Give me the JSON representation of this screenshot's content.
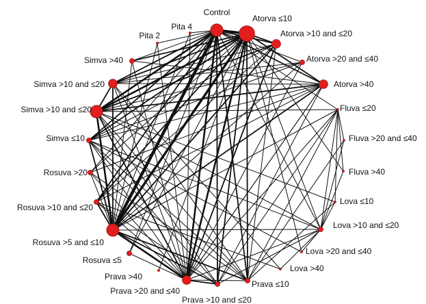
{
  "colors": {
    "node": "#e21e1e",
    "edge": "#111111",
    "label": "#111111"
  },
  "network": {
    "nodes": [
      {
        "id": "control",
        "label": "Control",
        "size": 3
      },
      {
        "id": "atorva_le10",
        "label": "Atorva ≤10",
        "size": 4
      },
      {
        "id": "atorva_10_20",
        "label": "Atorva >10 and ≤20",
        "size": 2
      },
      {
        "id": "atorva_20_40",
        "label": "Atorva >20 and ≤40",
        "size": 1
      },
      {
        "id": "atorva_gt40",
        "label": "Atorva >40",
        "size": 2
      },
      {
        "id": "fluva_le20",
        "label": "Fluva ≤20",
        "size": 0
      },
      {
        "id": "fluva_20_40",
        "label": "Fluva >20 and ≤40",
        "size": 0
      },
      {
        "id": "fluva_gt40",
        "label": "Fluva >40",
        "size": 0
      },
      {
        "id": "lova_le10",
        "label": "Lova ≤10",
        "size": 0
      },
      {
        "id": "lova_10_20",
        "label": "Lova >10 and ≤20",
        "size": 1
      },
      {
        "id": "lova_20_40",
        "label": "Lova >20 and ≤40",
        "size": 0
      },
      {
        "id": "lova_gt40",
        "label": "Lova >40",
        "size": 0
      },
      {
        "id": "prava_le10",
        "label": "Prava ≤10",
        "size": 1
      },
      {
        "id": "prava_10_20",
        "label": "Prava >10 and ≤20",
        "size": 1
      },
      {
        "id": "prava_20_40",
        "label": "Prava >20 and ≤40",
        "size": 2
      },
      {
        "id": "prava_gt40",
        "label": "Prava >40",
        "size": 0
      },
      {
        "id": "rosuva_le5",
        "label": "Rosuva ≤5",
        "size": 1
      },
      {
        "id": "rosuva_5_10",
        "label": "Rosuva >5 and ≤10",
        "size": 3
      },
      {
        "id": "rosuva_10_20",
        "label": "Rosuva >10 and ≤20",
        "size": 1
      },
      {
        "id": "rosuva_gt20",
        "label": "Rosuva >20",
        "size": 1
      },
      {
        "id": "simva_le10",
        "label": "Simva ≤10",
        "size": 1
      },
      {
        "id": "simva_10_20_a",
        "label": "Simva >10 and ≤20",
        "size": 3
      },
      {
        "id": "simva_10_20_b",
        "label": "Simva >10 and ≤20",
        "size": 2
      },
      {
        "id": "simva_gt40",
        "label": "Simva >40",
        "size": 1
      },
      {
        "id": "pita2",
        "label": "Pita 2",
        "size": 0
      },
      {
        "id": "pita4",
        "label": "Pita 4",
        "size": 0
      }
    ],
    "edges": [
      {
        "a": "control",
        "b": "atorva_le10",
        "w": 4
      },
      {
        "a": "control",
        "b": "atorva_10_20",
        "w": 2
      },
      {
        "a": "control",
        "b": "atorva_20_40",
        "w": 1
      },
      {
        "a": "control",
        "b": "atorva_gt40",
        "w": 2
      },
      {
        "a": "control",
        "b": "rosuva_5_10",
        "w": 5
      },
      {
        "a": "control",
        "b": "prava_20_40",
        "w": 3
      },
      {
        "a": "control",
        "b": "prava_10_20",
        "w": 2
      },
      {
        "a": "control",
        "b": "prava_le10",
        "w": 2
      },
      {
        "a": "control",
        "b": "simva_10_20_a",
        "w": 3
      },
      {
        "a": "control",
        "b": "simva_10_20_b",
        "w": 2
      },
      {
        "a": "control",
        "b": "simva_gt40",
        "w": 1
      },
      {
        "a": "control",
        "b": "simva_le10",
        "w": 2
      },
      {
        "a": "control",
        "b": "rosuva_10_20",
        "w": 2
      },
      {
        "a": "control",
        "b": "rosuva_gt20",
        "w": 1
      },
      {
        "a": "control",
        "b": "rosuva_le5",
        "w": 1
      },
      {
        "a": "control",
        "b": "lova_10_20",
        "w": 1
      },
      {
        "a": "control",
        "b": "fluva_le20",
        "w": 1
      },
      {
        "a": "control",
        "b": "pita2",
        "w": 1
      },
      {
        "a": "control",
        "b": "pita4",
        "w": 1
      },
      {
        "a": "atorva_le10",
        "b": "rosuva_5_10",
        "w": 4
      },
      {
        "a": "atorva_le10",
        "b": "simva_10_20_a",
        "w": 3
      },
      {
        "a": "atorva_le10",
        "b": "simva_10_20_b",
        "w": 2
      },
      {
        "a": "atorva_le10",
        "b": "simva_gt40",
        "w": 2
      },
      {
        "a": "atorva_le10",
        "b": "simva_le10",
        "w": 2
      },
      {
        "a": "atorva_le10",
        "b": "rosuva_10_20",
        "w": 2
      },
      {
        "a": "atorva_le10",
        "b": "rosuva_gt20",
        "w": 1
      },
      {
        "a": "atorva_le10",
        "b": "prava_20_40",
        "w": 3
      },
      {
        "a": "atorva_le10",
        "b": "prava_10_20",
        "w": 2
      },
      {
        "a": "atorva_le10",
        "b": "prava_le10",
        "w": 2
      },
      {
        "a": "atorva_le10",
        "b": "prava_gt40",
        "w": 1
      },
      {
        "a": "atorva_le10",
        "b": "rosuva_le5",
        "w": 1
      },
      {
        "a": "atorva_le10",
        "b": "atorva_10_20",
        "w": 2
      },
      {
        "a": "atorva_le10",
        "b": "atorva_gt40",
        "w": 2
      },
      {
        "a": "atorva_le10",
        "b": "lova_10_20",
        "w": 1
      },
      {
        "a": "atorva_le10",
        "b": "fluva_gt40",
        "w": 1
      },
      {
        "a": "atorva_le10",
        "b": "lova_20_40",
        "w": 1
      },
      {
        "a": "atorva_10_20",
        "b": "rosuva_5_10",
        "w": 2
      },
      {
        "a": "atorva_10_20",
        "b": "simva_10_20_a",
        "w": 2
      },
      {
        "a": "atorva_10_20",
        "b": "prava_20_40",
        "w": 2
      },
      {
        "a": "atorva_10_20",
        "b": "prava_le10",
        "w": 1
      },
      {
        "a": "atorva_10_20",
        "b": "simva_le10",
        "w": 1
      },
      {
        "a": "atorva_10_20",
        "b": "rosuva_10_20",
        "w": 1
      },
      {
        "a": "atorva_20_40",
        "b": "rosuva_5_10",
        "w": 1
      },
      {
        "a": "atorva_20_40",
        "b": "prava_20_40",
        "w": 1
      },
      {
        "a": "atorva_20_40",
        "b": "simva_10_20_b",
        "w": 1
      },
      {
        "a": "atorva_20_40",
        "b": "simva_le10",
        "w": 1
      },
      {
        "a": "atorva_gt40",
        "b": "rosuva_5_10",
        "w": 2
      },
      {
        "a": "atorva_gt40",
        "b": "simva_10_20_a",
        "w": 2
      },
      {
        "a": "atorva_gt40",
        "b": "simva_10_20_b",
        "w": 1
      },
      {
        "a": "atorva_gt40",
        "b": "prava_20_40",
        "w": 1
      },
      {
        "a": "atorva_gt40",
        "b": "prava_10_20",
        "w": 1
      },
      {
        "a": "atorva_gt40",
        "b": "rosuva_10_20",
        "w": 1
      },
      {
        "a": "atorva_gt40",
        "b": "simva_le10",
        "w": 1
      },
      {
        "a": "atorva_gt40",
        "b": "rosuva_gt20",
        "w": 1
      },
      {
        "a": "simva_10_20_a",
        "b": "rosuva_5_10",
        "w": 3
      },
      {
        "a": "simva_10_20_a",
        "b": "prava_20_40",
        "w": 2
      },
      {
        "a": "simva_10_20_a",
        "b": "prava_10_20",
        "w": 1
      },
      {
        "a": "simva_10_20_a",
        "b": "prava_le10",
        "w": 1
      },
      {
        "a": "simva_10_20_a",
        "b": "simva_10_20_b",
        "w": 2
      },
      {
        "a": "simva_10_20_a",
        "b": "lova_10_20",
        "w": 1
      },
      {
        "a": "simva_10_20_a",
        "b": "atorva_20_40",
        "w": 1
      },
      {
        "a": "simva_10_20_a",
        "b": "fluva_le20",
        "w": 1
      },
      {
        "a": "simva_10_20_a",
        "b": "lova_le10",
        "w": 1
      },
      {
        "a": "simva_10_20_b",
        "b": "rosuva_5_10",
        "w": 2
      },
      {
        "a": "simva_10_20_b",
        "b": "prava_20_40",
        "w": 1
      },
      {
        "a": "simva_10_20_b",
        "b": "prava_le10",
        "w": 1
      },
      {
        "a": "simva_10_20_b",
        "b": "atorva_10_20",
        "w": 1
      },
      {
        "a": "simva_10_20_b",
        "b": "lova_gt40",
        "w": 1
      },
      {
        "a": "simva_gt40",
        "b": "rosuva_5_10",
        "w": 1
      },
      {
        "a": "simva_gt40",
        "b": "prava_20_40",
        "w": 1
      },
      {
        "a": "simva_gt40",
        "b": "atorva_gt40",
        "w": 1
      },
      {
        "a": "simva_le10",
        "b": "rosuva_5_10",
        "w": 2
      },
      {
        "a": "simva_le10",
        "b": "prava_20_40",
        "w": 1
      },
      {
        "a": "simva_le10",
        "b": "prava_10_20",
        "w": 1
      },
      {
        "a": "simva_le10",
        "b": "lova_20_40",
        "w": 1
      },
      {
        "a": "simva_le10",
        "b": "lova_10_20",
        "w": 1
      },
      {
        "a": "simva_le10",
        "b": "prava_le10",
        "w": 1
      },
      {
        "a": "rosuva_5_10",
        "b": "prava_20_40",
        "w": 3
      },
      {
        "a": "rosuva_5_10",
        "b": "prava_10_20",
        "w": 2
      },
      {
        "a": "rosuva_5_10",
        "b": "prava_le10",
        "w": 2
      },
      {
        "a": "rosuva_5_10",
        "b": "rosuva_10_20",
        "w": 2
      },
      {
        "a": "rosuva_5_10",
        "b": "rosuva_gt20",
        "w": 1
      },
      {
        "a": "rosuva_5_10",
        "b": "lova_10_20",
        "w": 1
      },
      {
        "a": "rosuva_5_10",
        "b": "fluva_le20",
        "w": 1
      },
      {
        "a": "rosuva_5_10",
        "b": "atorva_10_20",
        "w": 1
      },
      {
        "a": "rosuva_10_20",
        "b": "prava_20_40",
        "w": 1
      },
      {
        "a": "rosuva_10_20",
        "b": "prava_10_20",
        "w": 1
      },
      {
        "a": "rosuva_10_20",
        "b": "lova_gt40",
        "w": 1
      },
      {
        "a": "rosuva_gt20",
        "b": "prava_20_40",
        "w": 1
      },
      {
        "a": "rosuva_gt20",
        "b": "prava_le10",
        "w": 1
      },
      {
        "a": "rosuva_le5",
        "b": "prava_20_40",
        "w": 1
      },
      {
        "a": "prava_20_40",
        "b": "prava_10_20",
        "w": 2
      },
      {
        "a": "prava_20_40",
        "b": "prava_le10",
        "w": 1
      },
      {
        "a": "prava_20_40",
        "b": "lova_10_20",
        "w": 1
      },
      {
        "a": "prava_20_40",
        "b": "atorva_gt40",
        "w": 1
      },
      {
        "a": "prava_20_40",
        "b": "fluva_le20",
        "w": 1
      },
      {
        "a": "prava_10_20",
        "b": "lova_10_20",
        "w": 1
      },
      {
        "a": "prava_10_20",
        "b": "fluva_le20",
        "w": 1
      },
      {
        "a": "prava_le10",
        "b": "fluva_le20",
        "w": 1
      },
      {
        "a": "prava_le10",
        "b": "lova_le10",
        "w": 1
      },
      {
        "a": "prava_le10",
        "b": "fluva_20_40",
        "w": 1
      },
      {
        "a": "fluva_le20",
        "b": "fluva_20_40",
        "w": 1
      },
      {
        "a": "fluva_le20",
        "b": "fluva_gt40",
        "w": 1
      },
      {
        "a": "fluva_le20",
        "b": "lova_le10",
        "w": 1
      },
      {
        "a": "fluva_le20",
        "b": "lova_10_20",
        "w": 1
      },
      {
        "a": "fluva_20_40",
        "b": "lova_10_20",
        "w": 1
      },
      {
        "a": "fluva_gt40",
        "b": "lova_10_20",
        "w": 1
      },
      {
        "a": "lova_le10",
        "b": "lova_10_20",
        "w": 1
      },
      {
        "a": "lova_20_40",
        "b": "lova_10_20",
        "w": 1
      },
      {
        "a": "lova_gt40",
        "b": "lova_10_20",
        "w": 1
      },
      {
        "a": "pita2",
        "b": "prava_20_40",
        "w": 1
      },
      {
        "a": "pita2",
        "b": "rosuva_5_10",
        "w": 1
      },
      {
        "a": "pita4",
        "b": "prava_20_40",
        "w": 1
      },
      {
        "a": "pita4",
        "b": "rosuva_5_10",
        "w": 1
      }
    ]
  }
}
